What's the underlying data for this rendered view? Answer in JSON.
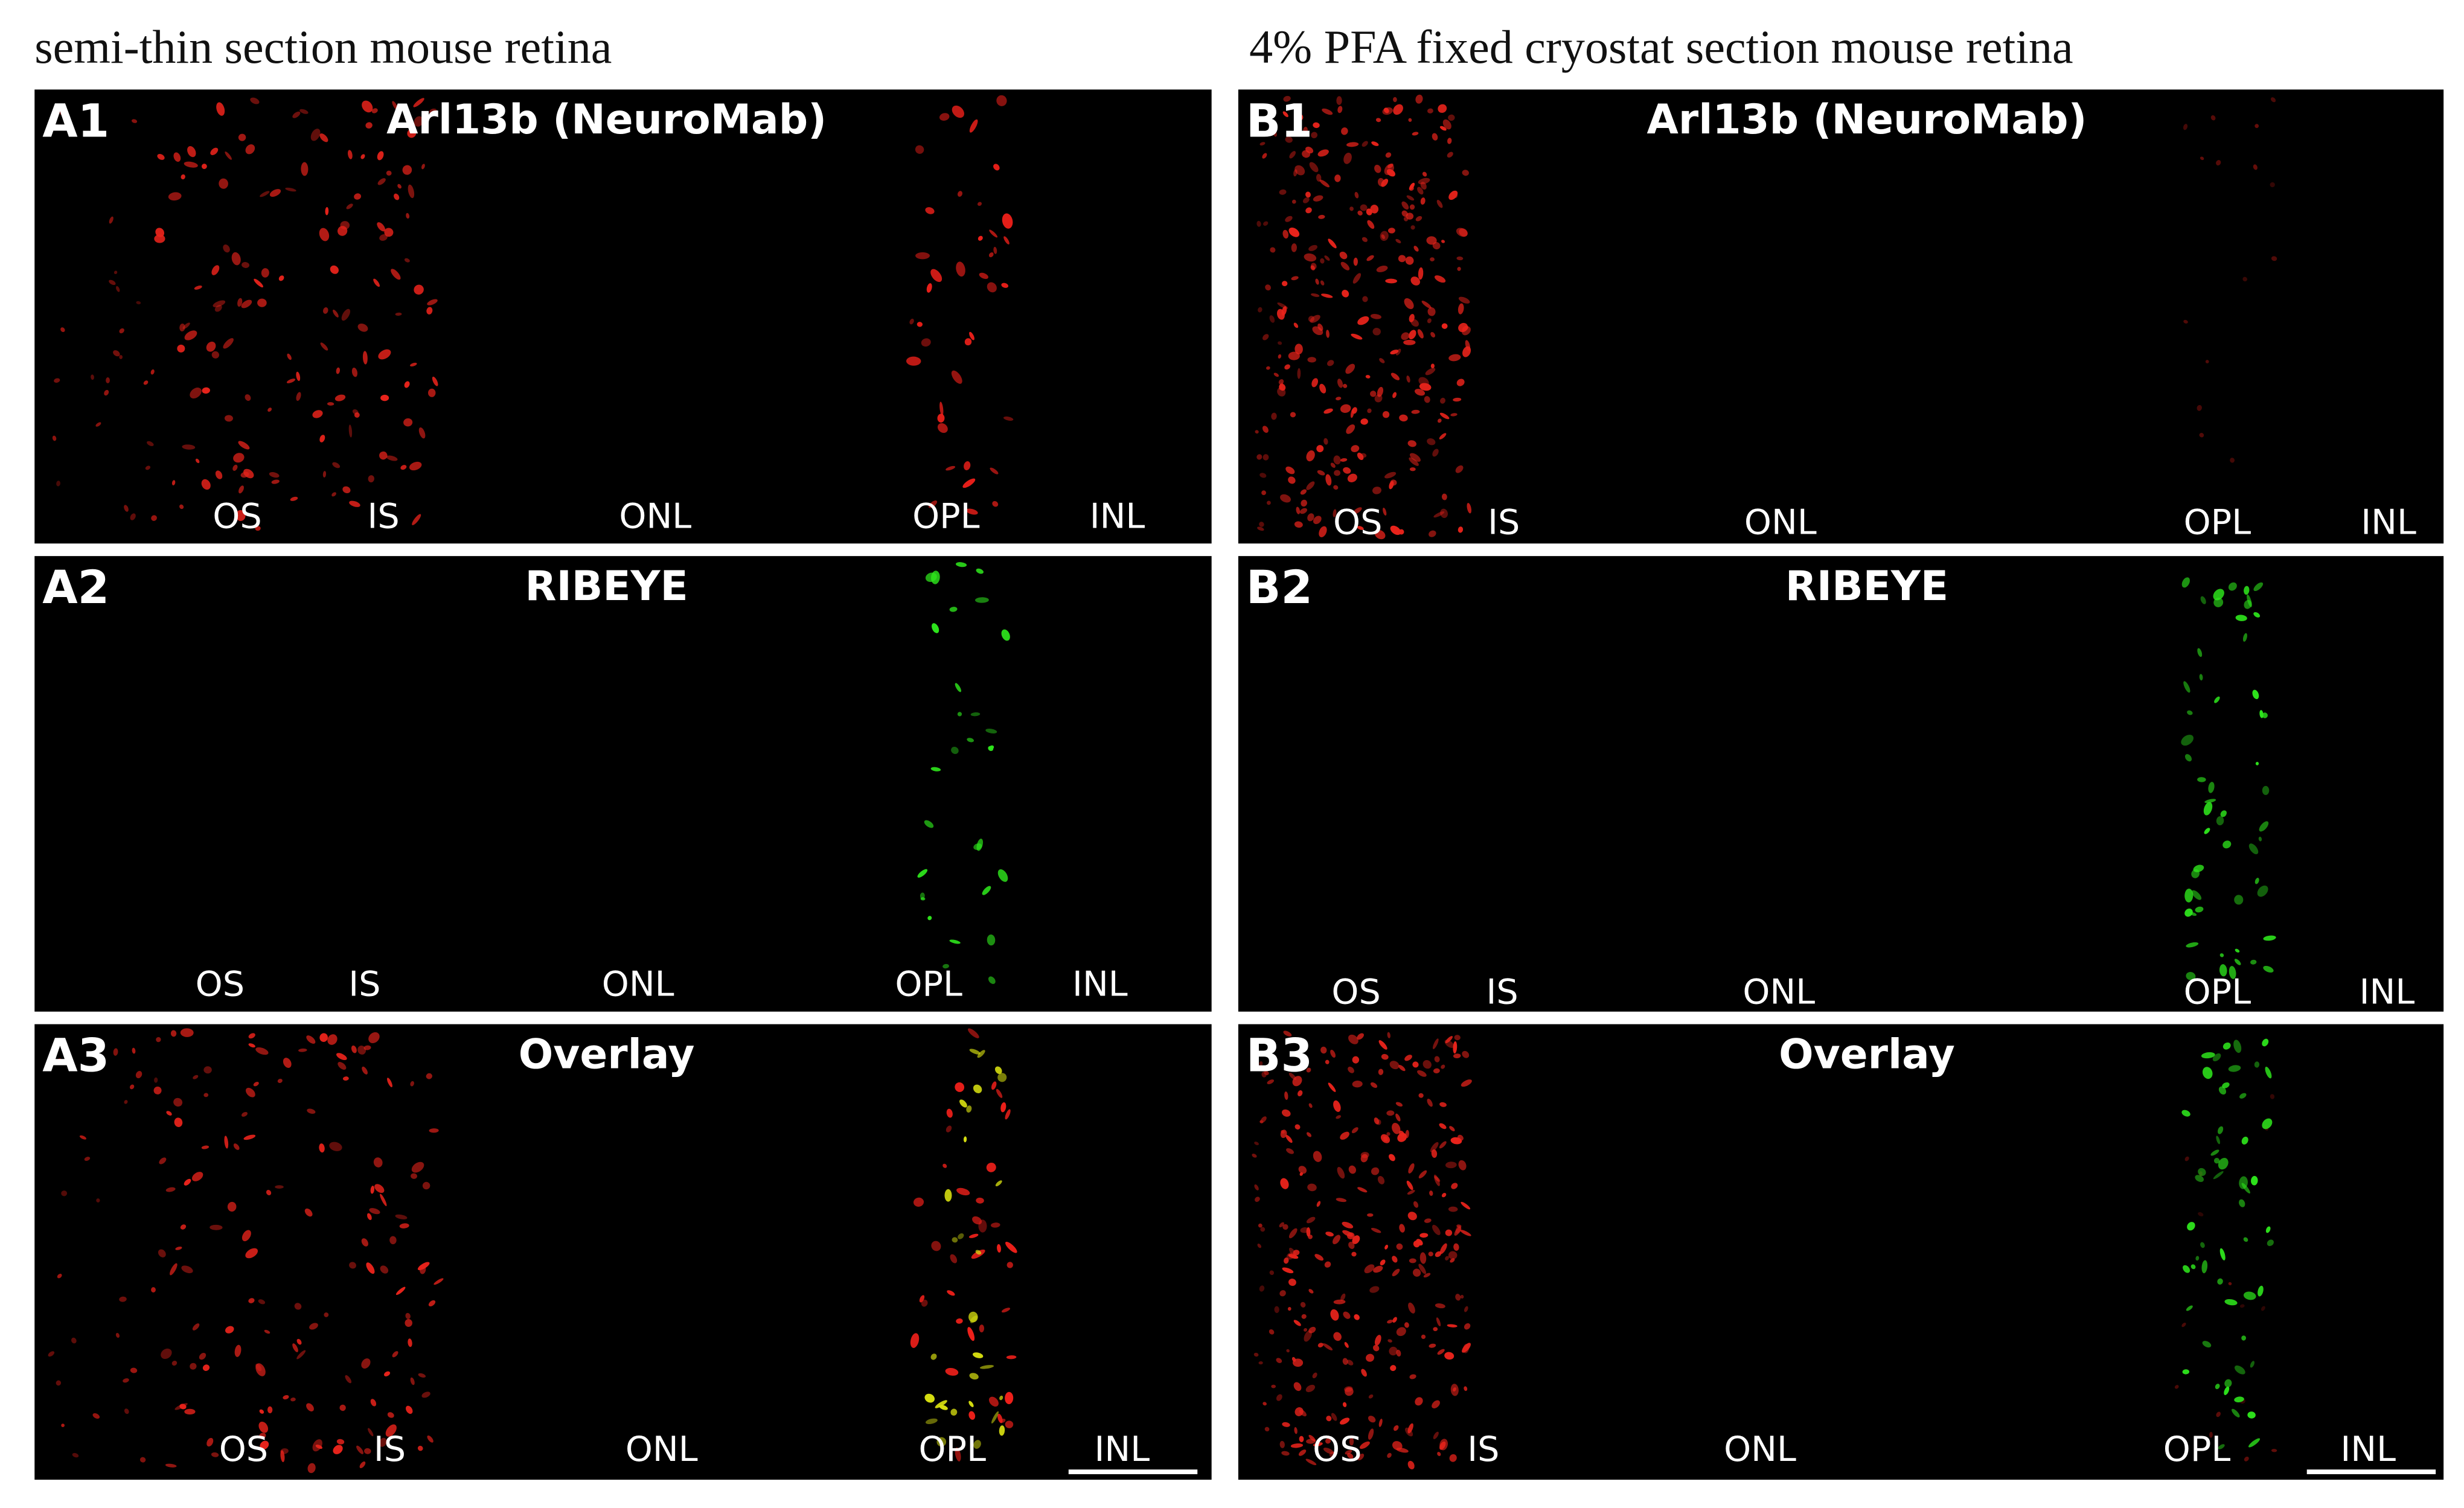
{
  "columns": [
    {
      "title": "semi-thin section mouse retina",
      "panels": [
        {
          "label": "A1",
          "title": "Arl13b (NeuroMab)",
          "layers": [
            "OS",
            "IS",
            "ONL",
            "OPL",
            "INL"
          ]
        },
        {
          "label": "A2",
          "title": "RIBEYE",
          "layers": [
            "OS",
            "IS",
            "ONL",
            "OPL",
            "INL"
          ]
        },
        {
          "label": "A3",
          "title": "Overlay",
          "layers": [
            "OS",
            "IS",
            "ONL",
            "OPL",
            "INL"
          ]
        }
      ]
    },
    {
      "title": "4% PFA fixed cryostat section mouse retina",
      "panels": [
        {
          "label": "B1",
          "title": "Arl13b (NeuroMab)",
          "layers": [
            "OS",
            "IS",
            "ONL",
            "OPL",
            "INL"
          ]
        },
        {
          "label": "B2",
          "title": "RIBEYE",
          "layers": [
            "OS",
            "IS",
            "ONL",
            "OPL",
            "INL"
          ]
        },
        {
          "label": "B3",
          "title": "Overlay",
          "layers": [
            "OS",
            "IS",
            "ONL",
            "OPL",
            "INL"
          ]
        }
      ]
    }
  ]
}
